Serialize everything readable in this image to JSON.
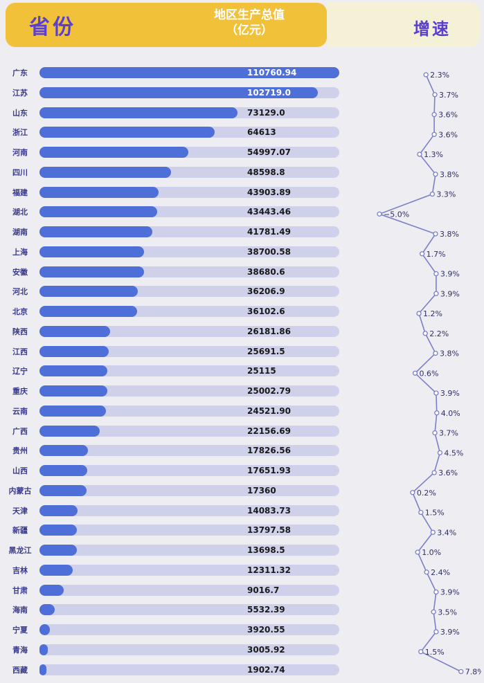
{
  "header": {
    "province_label": "省份",
    "gdp_label_line1": "地区生产总值",
    "gdp_label_line2": "（亿元）",
    "growth_label": "增速"
  },
  "colors": {
    "header_yellow": "#f1c13a",
    "header_title": "#5b3fcf",
    "bar": "#4f6fd8",
    "track": "#cfd0ea",
    "growth_line": "#7a7fc8"
  },
  "chart_data": {
    "type": "bar",
    "orientation": "horizontal",
    "categories": [
      "广东",
      "江苏",
      "山东",
      "浙江",
      "河南",
      "四川",
      "福建",
      "湖北",
      "湖南",
      "上海",
      "安徽",
      "河北",
      "北京",
      "陕西",
      "江西",
      "辽宁",
      "重庆",
      "云南",
      "广西",
      "贵州",
      "山西",
      "内蒙古",
      "天津",
      "新疆",
      "黑龙江",
      "吉林",
      "甘肃",
      "海南",
      "宁夏",
      "青海",
      "西藏"
    ],
    "value_labels": [
      "110760.94",
      "102719.0",
      "73129.0",
      "64613",
      "54997.07",
      "48598.8",
      "43903.89",
      "43443.46",
      "41781.49",
      "38700.58",
      "38680.6",
      "36206.9",
      "36102.6",
      "26181.86",
      "25691.5",
      "25115",
      "25002.79",
      "24521.90",
      "22156.69",
      "17826.56",
      "17651.93",
      "17360",
      "14083.73",
      "13797.58",
      "13698.5",
      "12311.32",
      "9016.7",
      "5532.39",
      "3920.55",
      "3005.92",
      "1902.74"
    ],
    "series": [
      {
        "name": "地区生产总值",
        "values": [
          110760.94,
          102719.0,
          73129.0,
          64613,
          54997.07,
          48598.8,
          43903.89,
          43443.46,
          41781.49,
          38700.58,
          38680.6,
          36206.9,
          36102.6,
          26181.86,
          25691.5,
          25115,
          25002.79,
          24521.9,
          22156.69,
          17826.56,
          17651.93,
          17360,
          14083.73,
          13797.58,
          13698.5,
          12311.32,
          9016.7,
          5532.39,
          3920.55,
          3005.92,
          1902.74
        ]
      },
      {
        "name": "增速",
        "type": "line",
        "values": [
          2.3,
          3.7,
          3.6,
          3.6,
          1.3,
          3.8,
          3.3,
          -5.0,
          3.8,
          1.7,
          3.9,
          3.9,
          1.2,
          2.2,
          3.8,
          0.6,
          3.9,
          4.0,
          3.7,
          4.5,
          3.6,
          0.2,
          1.5,
          3.4,
          1.0,
          2.4,
          3.9,
          3.5,
          3.9,
          1.5,
          7.8
        ],
        "labels": [
          "2.3%",
          "3.7%",
          "3.6%",
          "3.6%",
          "1.3%",
          "3.8%",
          "3.3%",
          "−5.0%",
          "3.8%",
          "1.7%",
          "3.9%",
          "3.9%",
          "1.2%",
          "2.2%",
          "3.8%",
          "0.6%",
          "3.9%",
          "4.0%",
          "3.7%",
          "4.5%",
          "3.6%",
          "0.2%",
          "1.5%",
          "3.4%",
          "1.0%",
          "2.4%",
          "3.9%",
          "3.5%",
          "3.9%",
          "1.5%",
          "7.8%"
        ]
      }
    ]
  }
}
